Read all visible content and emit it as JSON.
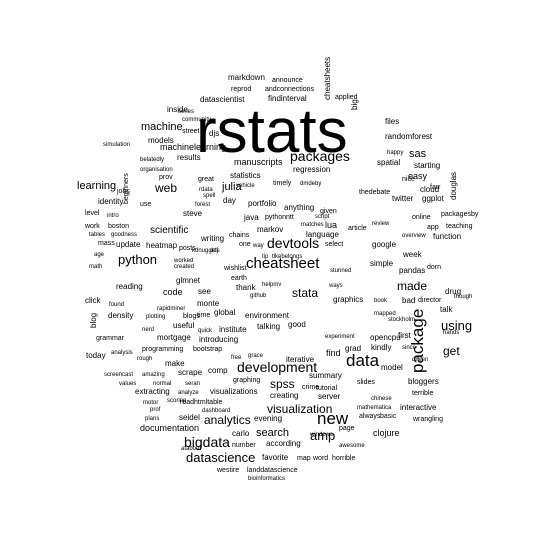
{
  "colors": {
    "background": "#ffffff",
    "text": "#000000"
  },
  "words": [
    "rstats",
    "data",
    "package",
    "cheatsheet",
    "new",
    "datascience",
    "bigdata",
    "packages",
    "devtools",
    "development",
    "python",
    "using",
    "amp",
    "visualization",
    "stata",
    "get",
    "spss",
    "analytics",
    "made",
    "web",
    "learning",
    "machine",
    "machinelearning",
    "sas",
    "search",
    "documentation",
    "julia",
    "scientific",
    "markdown",
    "announce",
    "cheatsheets",
    "big",
    "reprod",
    "andconnections",
    "applied",
    "findinterval",
    "datascientist",
    "inside",
    "series",
    "community",
    "street",
    "files",
    "models",
    "djs",
    "randomforest",
    "simulation",
    "organisation",
    "happy",
    "belatedly",
    "manuscripts",
    "regression",
    "spatial",
    "starting",
    "prov",
    "results",
    "statistics",
    "vehicle",
    "timely",
    "dmdeby",
    "nice",
    "easy",
    "twitter",
    "github",
    "cloud",
    "farr",
    "ggplot",
    "douglas",
    "level",
    "jobs",
    "beginners",
    "great",
    "rdata",
    "spell",
    "portfolio",
    "thedebate",
    "packagesby",
    "identity",
    "use",
    "steve",
    "day",
    "java",
    "anything",
    "given",
    "online",
    "boston",
    "work",
    "function",
    "intro",
    "forest",
    "pythonntt",
    "matches",
    "review",
    "overview",
    "app",
    "teaching",
    "tables",
    "goodness",
    "markov",
    "chains",
    "language",
    "script",
    "lua",
    "article",
    "mass",
    "update",
    "heatmap",
    "posts",
    "writing",
    "one",
    "way",
    "google",
    "week",
    "select",
    "age",
    "math",
    "worked",
    "created",
    "ddj",
    "wishlist",
    "earth",
    "tip",
    "tlkebelongs",
    "simple",
    "pandas",
    "dorn",
    "thank",
    "reading",
    "code",
    "see",
    "glmnet",
    "helpmv",
    "ways",
    "stunned",
    "monte",
    "carlo",
    "global",
    "environment",
    "graphics",
    "book",
    "drug",
    "click",
    "found",
    "useful",
    "bad",
    "blog",
    "blogs",
    "time",
    "density",
    "institute",
    "talking",
    "good",
    "director",
    "talk",
    "though",
    "hands",
    "grammar",
    "mortgage",
    "introducing",
    "quick",
    "opencpu",
    "first",
    "today",
    "analysis",
    "rough",
    "make",
    "scrape",
    "comp",
    "free",
    "grace",
    "iterative",
    "grad",
    "kindly",
    "since",
    "values",
    "programming",
    "bootstrap",
    "graphing",
    "crime",
    "tutorial",
    "summary",
    "model",
    "driven",
    "mathematica",
    "bloggers",
    "extracting",
    "analyze",
    "scoring",
    "readhtmltable",
    "creating",
    "slides",
    "terrible",
    "motor",
    "prof",
    "dashboard",
    "visualizations",
    "server",
    "interactive",
    "plans",
    "seidel",
    "evening",
    "wrangling",
    "atabout",
    "according",
    "number",
    "clojure",
    "page",
    "chinese",
    "favorite",
    "map",
    "word",
    "horrible",
    "awesome",
    "westire",
    "landdatascience",
    "bioinformatics",
    "windows",
    "screencast",
    "amazing",
    "kdnuggets",
    "plotting",
    "rapidminer",
    "nerd",
    "normal",
    "seran",
    "mapped",
    "stockholm",
    "experiment",
    "always",
    "basic",
    "find"
  ]
}
